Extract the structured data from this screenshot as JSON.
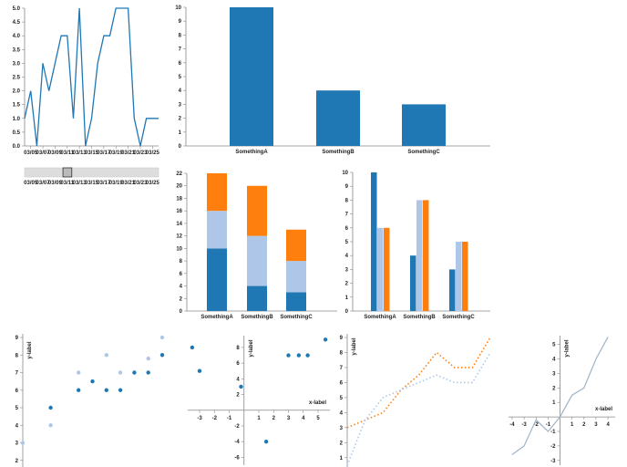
{
  "colors": {
    "blue": "#1f77b4",
    "light_blue": "#aec7e8",
    "orange": "#ff7f0e",
    "axis": "#888888",
    "grid_text": "#222222"
  },
  "chart_data": [
    {
      "id": "line-time",
      "type": "line",
      "x": [
        "03/04",
        "03/05",
        "03/06",
        "03/07",
        "03/08",
        "03/09",
        "03/10",
        "03/11",
        "03/12",
        "03/13",
        "03/14",
        "03/15",
        "03/16",
        "03/17",
        "03/18",
        "03/19",
        "03/20",
        "03/21",
        "03/22",
        "03/23",
        "03/24",
        "03/25",
        "03/26"
      ],
      "x_tick_labels": [
        "03/05",
        "03/07",
        "03/09",
        "03/11",
        "03/13",
        "03/15",
        "03/17",
        "03/19",
        "03/21",
        "03/23",
        "03/25"
      ],
      "series": [
        {
          "values": [
            1,
            2,
            0,
            3,
            2,
            3,
            4,
            4,
            1,
            5,
            0,
            1,
            3,
            4,
            4,
            5,
            5,
            5,
            1,
            0,
            1,
            1,
            1
          ]
        }
      ],
      "ylim": [
        0,
        5
      ],
      "yticks": [
        "0.0",
        "0.5",
        "1.0",
        "1.5",
        "2.0",
        "2.5",
        "3.0",
        "3.5",
        "4.0",
        "4.5",
        "5.0"
      ]
    },
    {
      "id": "brush",
      "type": "range-selector",
      "x_tick_labels": [
        "03/05",
        "03/07",
        "03/09",
        "03/11",
        "03/13",
        "03/15",
        "03/17",
        "03/19",
        "03/21",
        "03/23",
        "03/25"
      ],
      "selection": [
        "03/10",
        "03/11"
      ]
    },
    {
      "id": "bar-simple",
      "type": "bar",
      "categories": [
        "SomethingA",
        "SomethingB",
        "SomethingC"
      ],
      "values": [
        10,
        4,
        3
      ],
      "ylim": [
        0,
        10
      ],
      "yticks": [
        "0",
        "1",
        "2",
        "3",
        "4",
        "5",
        "6",
        "7",
        "8",
        "9",
        "10"
      ]
    },
    {
      "id": "bar-stacked",
      "type": "bar",
      "stacked": true,
      "categories": [
        "SomethingA",
        "SomethingB",
        "SomethingC"
      ],
      "series": [
        {
          "values": [
            10,
            4,
            3
          ]
        },
        {
          "values": [
            6,
            8,
            5
          ]
        },
        {
          "values": [
            6,
            8,
            5
          ]
        }
      ],
      "ylim": [
        0,
        22
      ],
      "yticks": [
        "0",
        "2",
        "4",
        "6",
        "8",
        "10",
        "12",
        "14",
        "16",
        "18",
        "20",
        "22"
      ]
    },
    {
      "id": "bar-grouped",
      "type": "bar",
      "categories": [
        "SomethingA",
        "SomethingB",
        "SomethingC"
      ],
      "series": [
        {
          "values": [
            10,
            4,
            3
          ]
        },
        {
          "values": [
            6,
            8,
            5
          ]
        },
        {
          "values": [
            6,
            8,
            5
          ]
        }
      ],
      "ylim": [
        0,
        10
      ],
      "yticks": [
        "0",
        "1",
        "2",
        "3",
        "4",
        "5",
        "6",
        "7",
        "8",
        "9",
        "10"
      ]
    },
    {
      "id": "scatter-1",
      "type": "scatter",
      "ylabel": "y-label",
      "series": [
        {
          "x": [
            0.0,
            1.0,
            2.0,
            3.0,
            3.5,
            4.0,
            4.5,
            5.0
          ],
          "y": [
            3.0,
            4.0,
            7.0,
            8.0,
            7.0,
            7.0,
            7.8,
            9.0
          ]
        },
        {
          "x": [
            1.0,
            2.0,
            2.5,
            3.0,
            3.5,
            4.0,
            4.5,
            5.0
          ],
          "y": [
            5.0,
            6.0,
            6.5,
            6.0,
            6.0,
            7.0,
            7.0,
            8.0
          ]
        }
      ],
      "yticks": [
        "2",
        "3",
        "4",
        "5",
        "6",
        "7",
        "8",
        "9"
      ],
      "ylim": [
        1,
        9
      ],
      "xlim": [
        0,
        5
      ]
    },
    {
      "id": "scatter-2",
      "type": "scatter",
      "xlabel": "x-label",
      "ylabel": "y-label",
      "series": [
        {
          "x": [
            -3.5,
            -3.0,
            -0.2,
            1.5,
            3.0,
            3.7,
            4.3,
            5.5
          ],
          "y": [
            8.0,
            5.0,
            3.0,
            -4.0,
            7.0,
            7.0,
            7.0,
            9.0
          ]
        }
      ],
      "xticks": [
        "-3",
        "-2",
        "-1",
        "1",
        "2",
        "3",
        "4",
        "5"
      ],
      "yticks": [
        "-6",
        "-4",
        "-2",
        "2",
        "4",
        "6",
        "8"
      ],
      "xlim": [
        -3.8,
        5.8
      ],
      "ylim": [
        -7,
        9.5
      ]
    },
    {
      "id": "line-dotted",
      "type": "line",
      "ylabel": "y-label",
      "series": [
        {
          "x": [
            0,
            1,
            2,
            3,
            4,
            5,
            6,
            7,
            8
          ],
          "y": [
            3.0,
            3.5,
            4.0,
            5.5,
            6.5,
            8.0,
            7.0,
            7.0,
            9.0
          ]
        },
        {
          "x": [
            0,
            1,
            2,
            3,
            4,
            5,
            6,
            7,
            8
          ],
          "y": [
            0.5,
            3.5,
            5.0,
            5.5,
            6.0,
            6.5,
            6.0,
            6.0,
            8.0
          ]
        }
      ],
      "yticks": [
        "1",
        "2",
        "3",
        "4",
        "5",
        "6",
        "7",
        "8",
        "9"
      ],
      "ylim": [
        0.5,
        9
      ],
      "xlim": [
        0,
        8
      ]
    },
    {
      "id": "line-centered",
      "type": "line",
      "xlabel": "x-label",
      "ylabel": "y-label",
      "series": [
        {
          "x": [
            -4,
            -3,
            -2,
            -1,
            0,
            1,
            2,
            3,
            4
          ],
          "y": [
            -2.6,
            -2.0,
            -0.2,
            -1.0,
            0.0,
            1.5,
            2.0,
            4.0,
            5.5
          ]
        }
      ],
      "xticks": [
        "-4",
        "-3",
        "-2",
        "-1",
        "1",
        "2",
        "3",
        "4"
      ],
      "yticks": [
        "-3",
        "-2",
        "-1",
        "1",
        "2",
        "3",
        "4",
        "5"
      ],
      "xlim": [
        -4.3,
        4.6
      ],
      "ylim": [
        -3.2,
        5.6
      ]
    }
  ]
}
